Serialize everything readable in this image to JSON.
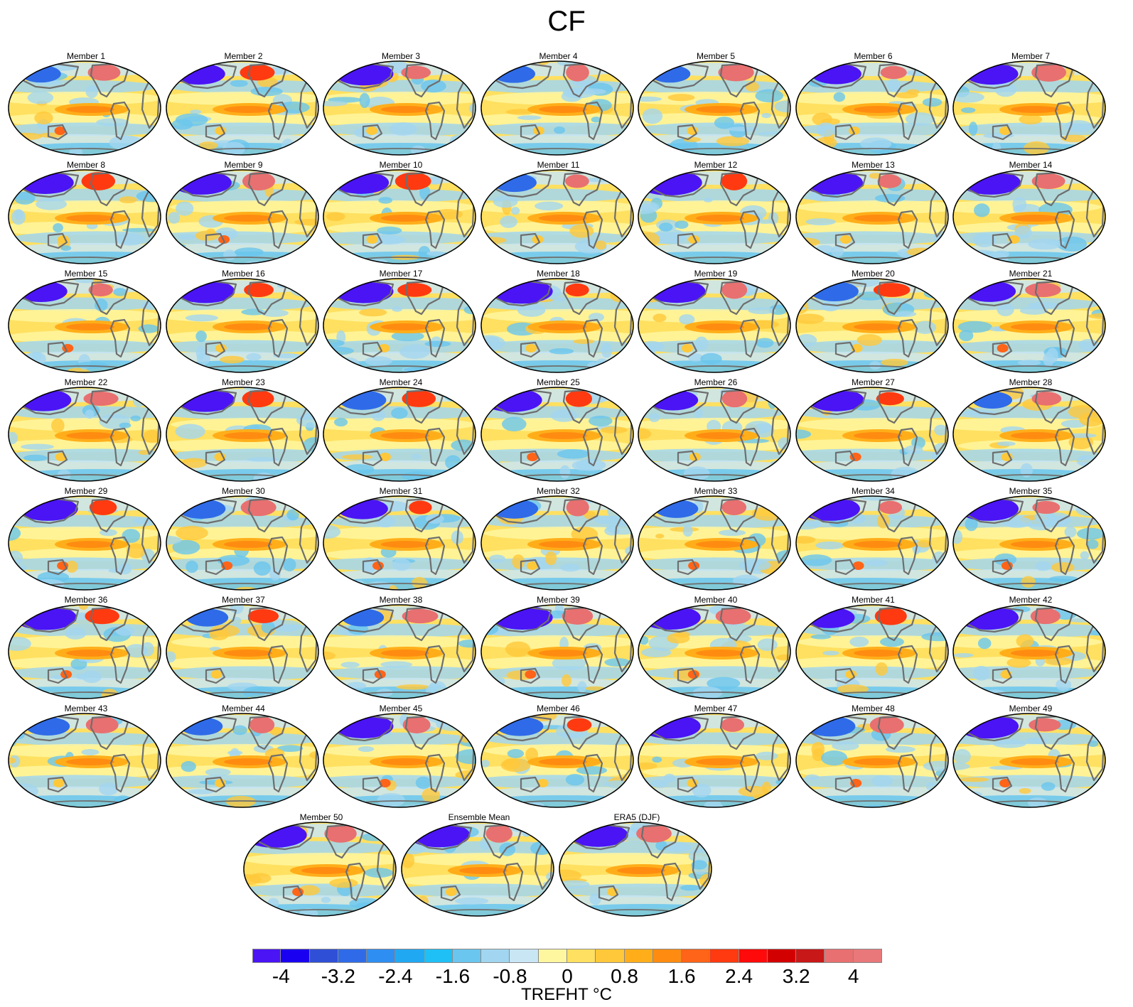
{
  "title": "CF",
  "panels": [
    "Member 1",
    "Member 2",
    "Member 3",
    "Member 4",
    "Member 5",
    "Member 6",
    "Member 7",
    "Member 8",
    "Member 9",
    "Member 10",
    "Member 11",
    "Member 12",
    "Member 13",
    "Member 14",
    "Member 15",
    "Member 16",
    "Member 17",
    "Member 18",
    "Member 19",
    "Member 20",
    "Member 21",
    "Member 22",
    "Member 23",
    "Member 24",
    "Member 25",
    "Member 26",
    "Member 27",
    "Member 28",
    "Member 29",
    "Member 30",
    "Member 31",
    "Member 32",
    "Member 33",
    "Member 34",
    "Member 35",
    "Member 36",
    "Member 37",
    "Member 38",
    "Member 39",
    "Member 40",
    "Member 41",
    "Member 42",
    "Member 43",
    "Member 44",
    "Member 45",
    "Member 46",
    "Member 47",
    "Member 48",
    "Member 49",
    "Member 50",
    "Ensemble Mean",
    "ERA5 (DJF)"
  ],
  "colorbar": {
    "colors": [
      "#4a14f5",
      "#1a00f0",
      "#2f50d6",
      "#2f6be8",
      "#2f8ef2",
      "#21a8f2",
      "#1fc0f5",
      "#6ac6ee",
      "#a2d6f0",
      "#c9e6f4",
      "#fff6a0",
      "#ffe060",
      "#ffc83a",
      "#ffae1a",
      "#ff8c10",
      "#ff6418",
      "#ff3a10",
      "#ff0a0a",
      "#d20000",
      "#c81818",
      "#e87070",
      "#e8787a"
    ],
    "tick_labels": [
      "-4",
      "-3.2",
      "-2.4",
      "-1.6",
      "-0.8",
      "0",
      "0.8",
      "1.6",
      "2.4",
      "3.2",
      "4"
    ],
    "label": "TREFHT °C"
  },
  "colors": {
    "land_outline": "#6e6e6e",
    "warm_core": "#ff8c10",
    "cold_core": "#2f50d6"
  }
}
